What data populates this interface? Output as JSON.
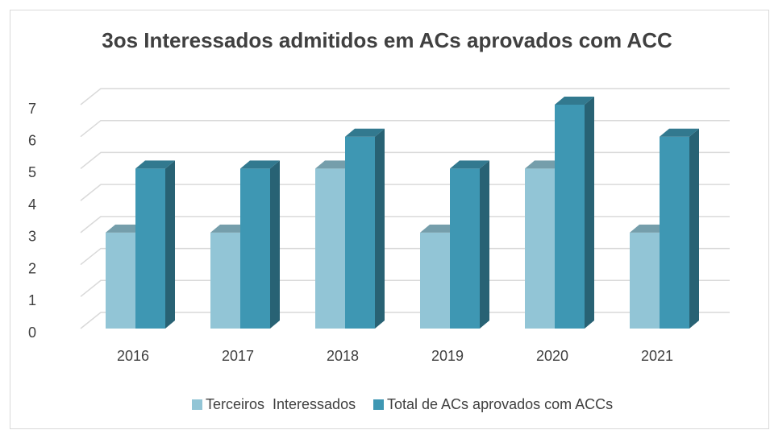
{
  "chart_data": {
    "type": "bar3d",
    "title": "3os Interessados admitidos em ACs aprovados com ACC",
    "categories": [
      "2016",
      "2017",
      "2018",
      "2019",
      "2020",
      "2021"
    ],
    "series": [
      {
        "name": "Terceiros  Interessados",
        "color": "#92c5d6",
        "values": [
          3,
          3,
          5,
          3,
          5,
          3
        ]
      },
      {
        "name": "Total de ACs aprovados com ACCs",
        "color": "#3e97b3",
        "values": [
          5,
          5,
          6,
          5,
          7,
          6
        ]
      }
    ],
    "ylim": [
      0,
      7
    ],
    "yticks": [
      0,
      1,
      2,
      3,
      4,
      5,
      6,
      7
    ],
    "grid": true,
    "legend": "bottom"
  }
}
